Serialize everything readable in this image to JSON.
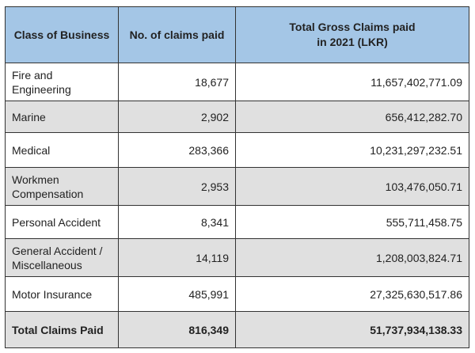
{
  "headers": [
    "Class of Business",
    "No. of claims paid",
    "Total Gross Claims paid in 2021  (LKR)"
  ],
  "rows": [
    {
      "class": "Fire and Engineering",
      "claims": "18,677",
      "amount": "11,657,402,771.09"
    },
    {
      "class": "Marine",
      "claims": "2,902",
      "amount": "656,412,282.70"
    },
    {
      "class": "Medical",
      "claims": "283,366",
      "amount": "10,231,297,232.51"
    },
    {
      "class": "Workmen Compensation",
      "claims": "2,953",
      "amount": "103,476,050.71"
    },
    {
      "class": "Personal Accident",
      "claims": "8,341",
      "amount": "555,711,458.75"
    },
    {
      "class": "General Accident / Miscellaneous",
      "claims": "14,119",
      "amount": "1,208,003,824.71"
    },
    {
      "class": "Motor Insurance",
      "claims": "485,991",
      "amount": "27,325,630,517.86"
    }
  ],
  "total": {
    "label": "Total Claims Paid",
    "claims": "816,349",
    "amount": "51,737,934,138.33"
  }
}
